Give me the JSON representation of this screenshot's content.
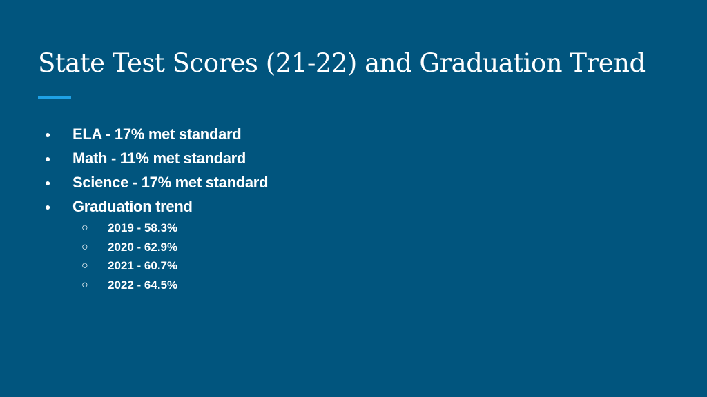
{
  "slide": {
    "title": "State Test Scores (21-22) and Graduation Trend",
    "accent_color": "#1ea1e6",
    "background_color": "#01557e",
    "bullets": [
      {
        "marker": "●",
        "text": "ELA - 17% met standard"
      },
      {
        "marker": "●",
        "text": "Math - 11% met standard"
      },
      {
        "marker": "●",
        "text": "Science - 17% met standard"
      },
      {
        "marker": "●",
        "text": "Graduation trend"
      }
    ],
    "subbullets": [
      {
        "marker": "○",
        "text": "2019 - 58.3%"
      },
      {
        "marker": "○",
        "text": "2020 - 62.9%"
      },
      {
        "marker": "○",
        "text": "2021 - 60.7%"
      },
      {
        "marker": "○",
        "text": "2022 - 64.5%"
      }
    ]
  }
}
